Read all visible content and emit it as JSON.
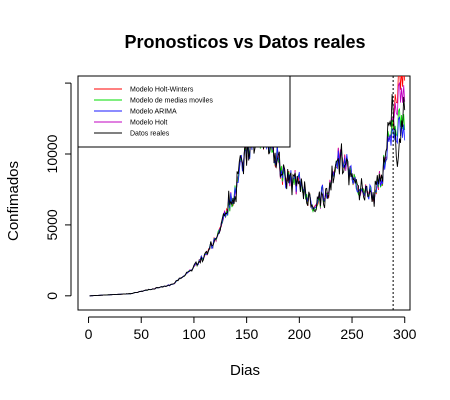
{
  "chart_data": {
    "type": "line",
    "title": "Pronosticos vs Datos reales",
    "xlabel": "Dias",
    "ylabel": "Confimados",
    "xlim": [
      -10,
      305
    ],
    "ylim": [
      -1000,
      15500
    ],
    "x_ticks": [
      0,
      50,
      100,
      150,
      200,
      250,
      300
    ],
    "y_ticks": [
      0,
      5000,
      10000
    ],
    "y_tick_marks": [
      0,
      5000,
      10000,
      15000
    ],
    "grid": false,
    "legend_position": "top-left",
    "vline_x": 289,
    "vline_style": "dotted",
    "observed_days": [
      1,
      289
    ],
    "forecast_days": [
      290,
      300
    ],
    "series": [
      {
        "name": "Modelo Holt-Winters",
        "color": "#ff0000",
        "x": [
          1,
          40,
          80,
          100,
          120,
          140,
          150,
          160,
          170,
          180,
          190,
          200,
          210,
          220,
          230,
          240,
          250,
          260,
          270,
          280,
          289,
          290,
          292,
          294,
          296,
          298,
          300
        ],
        "values": [
          0,
          150,
          800,
          2000,
          3800,
          7800,
          10500,
          11500,
          11200,
          9300,
          8200,
          7900,
          6600,
          6800,
          8000,
          10200,
          8500,
          7300,
          6900,
          9000,
          13000,
          14000,
          14600,
          15100,
          15500,
          16000,
          16600
        ]
      },
      {
        "name": "Modelo de medias moviles",
        "color": "#00dd00",
        "x": [
          1,
          40,
          80,
          100,
          120,
          140,
          150,
          160,
          170,
          180,
          190,
          200,
          210,
          220,
          230,
          240,
          250,
          260,
          270,
          280,
          289,
          290,
          292,
          294,
          296,
          298,
          300
        ],
        "values": [
          0,
          150,
          800,
          2000,
          3800,
          7800,
          10500,
          11500,
          11200,
          9300,
          8200,
          7900,
          6600,
          6800,
          8000,
          10200,
          8500,
          7300,
          6900,
          9000,
          12800,
          12000,
          12200,
          12400,
          12600,
          12700,
          12800
        ]
      },
      {
        "name": "Modelo ARIMA",
        "color": "#1a1aff",
        "x": [
          1,
          40,
          80,
          100,
          120,
          140,
          150,
          160,
          170,
          180,
          190,
          200,
          210,
          220,
          230,
          240,
          250,
          260,
          270,
          280,
          289,
          290,
          292,
          294,
          296,
          298,
          300
        ],
        "values": [
          0,
          150,
          800,
          2000,
          3800,
          7800,
          10500,
          11500,
          11200,
          9300,
          8200,
          7900,
          6600,
          6800,
          8000,
          10200,
          8500,
          7300,
          6900,
          9000,
          12600,
          11800,
          11700,
          11900,
          12000,
          12100,
          12000
        ]
      },
      {
        "name": "Modelo Holt",
        "color": "#c000c0",
        "x": [
          1,
          40,
          80,
          100,
          120,
          140,
          150,
          160,
          170,
          180,
          190,
          200,
          210,
          220,
          230,
          240,
          250,
          260,
          270,
          280,
          289,
          290,
          292,
          294,
          296,
          298,
          300
        ],
        "values": [
          0,
          150,
          800,
          2000,
          3800,
          7800,
          10500,
          11500,
          11200,
          9300,
          8200,
          7900,
          6600,
          6800,
          8000,
          10200,
          8500,
          7300,
          6900,
          9000,
          13200,
          13500,
          13800,
          14100,
          14400,
          14700,
          15000
        ]
      },
      {
        "name": "Datos reales",
        "color": "#000000",
        "x": [
          1,
          40,
          80,
          100,
          120,
          140,
          150,
          160,
          165,
          170,
          180,
          190,
          200,
          210,
          220,
          230,
          240,
          250,
          260,
          270,
          280,
          289,
          292,
          294,
          296,
          298,
          300
        ],
        "values": [
          0,
          150,
          800,
          2000,
          3800,
          7800,
          10500,
          11500,
          12500,
          11200,
          9300,
          8200,
          7900,
          6600,
          6800,
          8000,
          10200,
          8500,
          7300,
          6900,
          9000,
          14000,
          10500,
          9500,
          11500,
          13000,
          14500
        ]
      }
    ]
  }
}
